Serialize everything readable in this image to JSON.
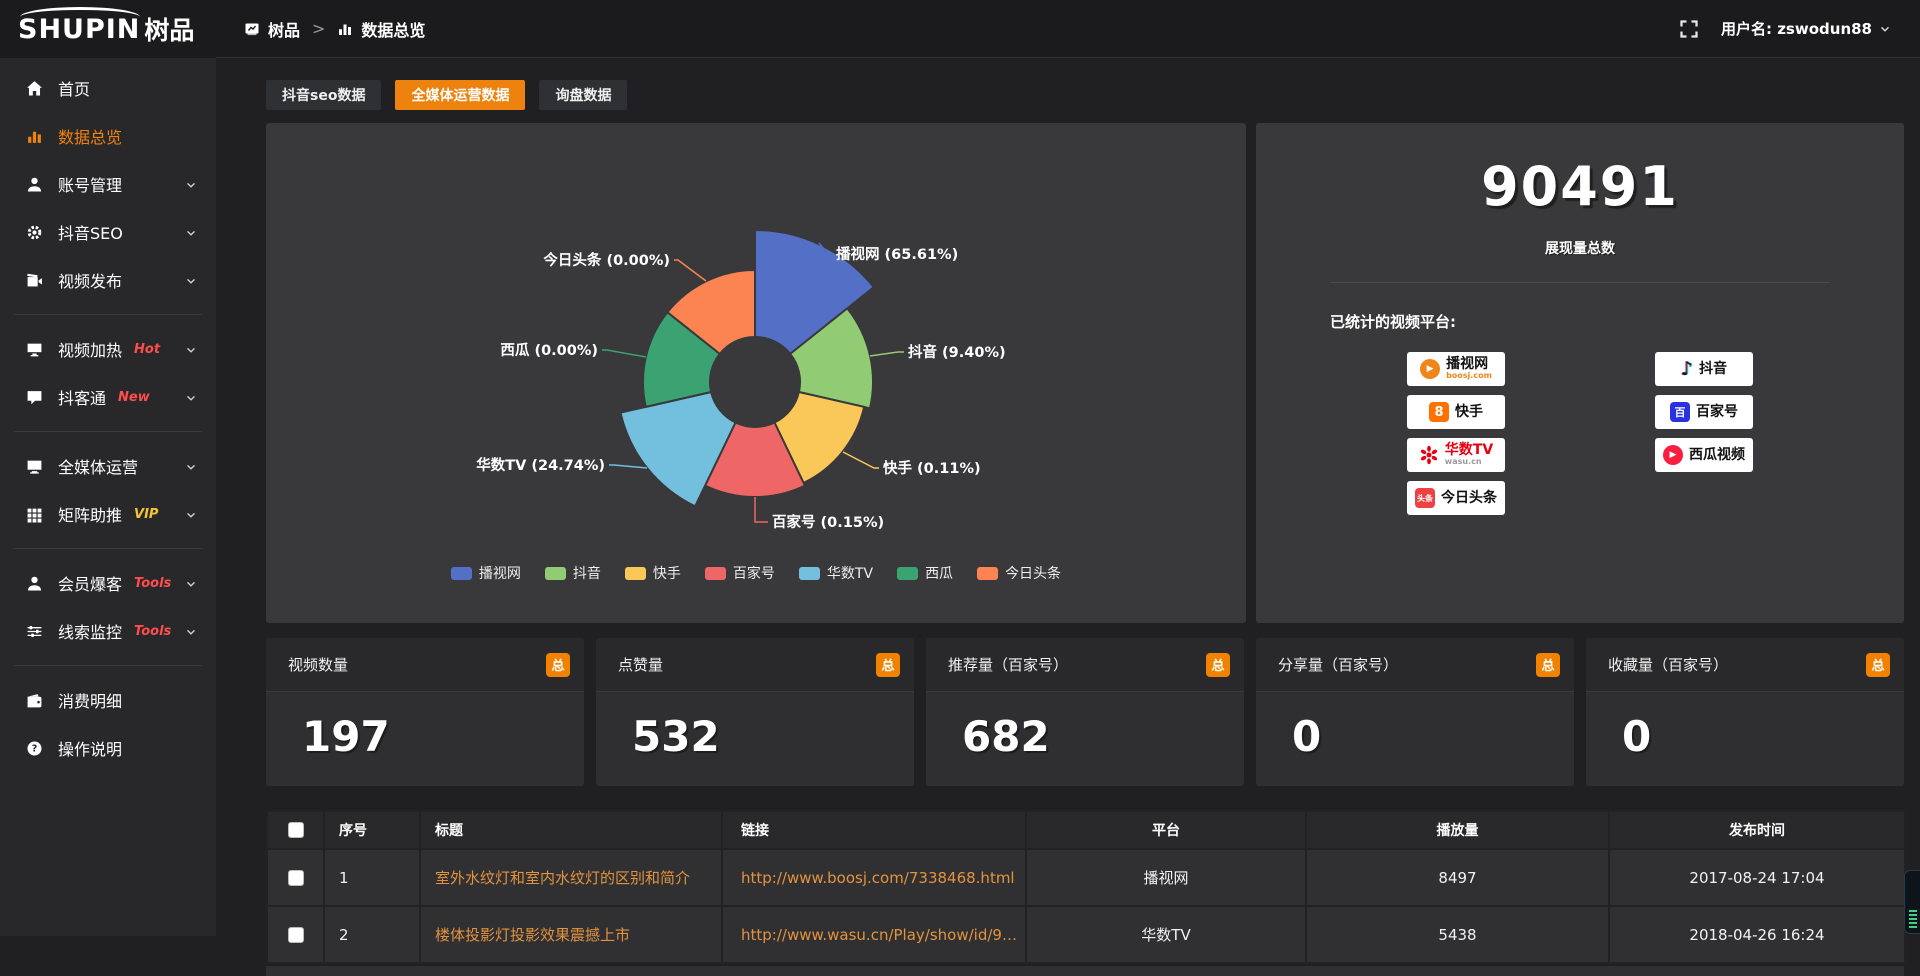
{
  "topbar": {
    "logo": {
      "latin": "SHUPIN",
      "cn": "树品"
    },
    "breadcrumb": {
      "root": "树品",
      "separator": ">",
      "current": "数据总览"
    },
    "user": {
      "label": "用户名: zswodun88"
    }
  },
  "sidebar": {
    "items": [
      {
        "label": "首页",
        "icon": "home-icon"
      },
      {
        "label": "数据总览",
        "icon": "chart-icon",
        "active": true
      },
      {
        "label": "账号管理",
        "icon": "user-icon",
        "chevron": true
      },
      {
        "label": "抖音SEO",
        "icon": "gear-icon",
        "chevron": true
      },
      {
        "label": "视频发布",
        "icon": "video-icon",
        "chevron": true,
        "divider_after": true
      },
      {
        "label": "视频加热",
        "icon": "screen-icon",
        "badge": "Hot",
        "badge_color": "#ff4d4d",
        "chevron": true
      },
      {
        "label": "抖客通",
        "icon": "chat-icon",
        "badge": "New",
        "badge_color": "#ff4d4d",
        "chevron": true,
        "divider_after": true
      },
      {
        "label": "全媒体运营",
        "icon": "monitor-icon",
        "chevron": true
      },
      {
        "label": "矩阵助推",
        "icon": "grid-icon",
        "badge": "VIP",
        "badge_color": "#f7c437",
        "chevron": true,
        "divider_after": true
      },
      {
        "label": "会员爆客",
        "icon": "member-icon",
        "badge": "Tools",
        "badge_color": "#ff4d4d",
        "chevron": true
      },
      {
        "label": "线索监控",
        "icon": "sliders-icon",
        "badge": "Tools",
        "badge_color": "#ff4d4d",
        "chevron": true,
        "divider_after": true
      },
      {
        "label": "消费明细",
        "icon": "wallet-icon"
      },
      {
        "label": "操作说明",
        "icon": "help-icon"
      }
    ]
  },
  "tabs": [
    {
      "label": "抖音seo数据",
      "active": false
    },
    {
      "label": "全媒体运营数据",
      "active": true
    },
    {
      "label": "询盘数据",
      "active": false
    }
  ],
  "chart_data": {
    "type": "pie",
    "subtype": "nightingale-rose",
    "title": "",
    "label_format": "{name} ({percent}%)",
    "series": [
      {
        "name": "播视网",
        "percent": "65.61",
        "color": "#5470c6"
      },
      {
        "name": "抖音",
        "percent": "9.40",
        "color": "#91cc75"
      },
      {
        "name": "快手",
        "percent": "0.11",
        "color": "#fac858"
      },
      {
        "name": "百家号",
        "percent": "0.15",
        "color": "#ee6666"
      },
      {
        "name": "华数TV",
        "percent": "24.74",
        "color": "#73c0de"
      },
      {
        "name": "西瓜",
        "percent": "0.00",
        "color": "#3ba272"
      },
      {
        "name": "今日头条",
        "percent": "0.00",
        "color": "#fc8452"
      }
    ],
    "legend": {
      "position": "bottom",
      "items": [
        "播视网",
        "抖音",
        "快手",
        "百家号",
        "华数TV",
        "西瓜",
        "今日头条"
      ]
    }
  },
  "summary": {
    "total_value": "90491",
    "total_label": "展现量总数",
    "platforms_title": "已统计的视频平台:",
    "platforms_left": [
      {
        "name": "播视网",
        "sub": "boosj.com",
        "logo": "boosj-logo",
        "logo_color": "#f08519",
        "sub_color": "#f08519"
      },
      {
        "name": "快手",
        "logo": "kuaishou-logo",
        "logo_color": "#ff7102"
      },
      {
        "name": "华数TV",
        "sub": "wasu.cn",
        "logo": "wasu-logo",
        "logo_color": "#e60012",
        "name_color": "#e60012",
        "sub_color": "#999999"
      },
      {
        "name": "今日头条",
        "logo": "toutiao-logo",
        "logo_color": "#f04142"
      }
    ],
    "platforms_right": [
      {
        "name": "抖音",
        "logo": "douyin-logo",
        "logo_color": "#161823"
      },
      {
        "name": "百家号",
        "logo": "baijiahao-logo",
        "logo_color": "#2932e1"
      },
      {
        "name": "西瓜视频",
        "logo": "xigua-logo",
        "logo_color": "#fa1f41"
      }
    ]
  },
  "stat_cards": [
    {
      "label": "视频数量",
      "badge": "总",
      "value": "197"
    },
    {
      "label": "点赞量",
      "badge": "总",
      "value": "532"
    },
    {
      "label": "推荐量（百家号）",
      "badge": "总",
      "value": "682"
    },
    {
      "label": "分享量（百家号）",
      "badge": "总",
      "value": "0"
    },
    {
      "label": "收藏量（百家号）",
      "badge": "总",
      "value": "0"
    }
  ],
  "table": {
    "columns": [
      "序号",
      "标题",
      "链接",
      "平台",
      "播放量",
      "发布时间"
    ],
    "rows": [
      {
        "seq": "1",
        "title": "室外水纹灯和室内水纹灯的区别和简介",
        "link": "http://www.boosj.com/7338468.html",
        "platform": "播视网",
        "plays": "8497",
        "published": "2017-08-24 17:04"
      },
      {
        "seq": "2",
        "title": "楼体投影灯投影效果震撼上市",
        "link": "http://www.wasu.cn/Play/show/id/952...",
        "platform": "华数TV",
        "plays": "5438",
        "published": "2018-04-26 16:24"
      }
    ]
  },
  "colors": {
    "accent_orange": "#ed820e",
    "link_orange": "#e2933f",
    "badge_orange": "#f08200",
    "sidebar_active": "#f0820d"
  }
}
